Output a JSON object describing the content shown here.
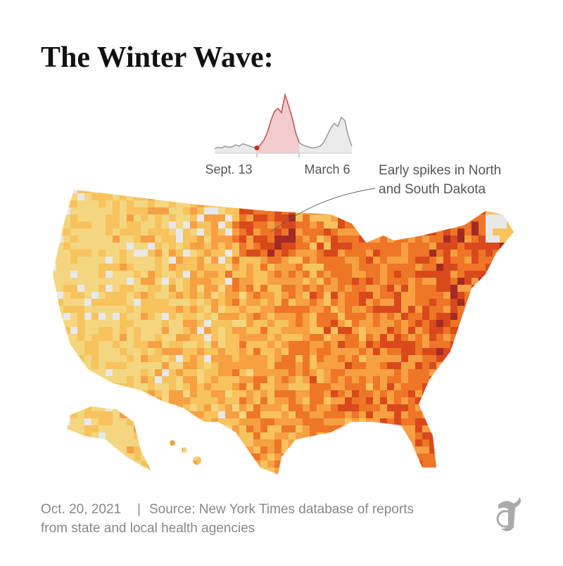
{
  "title": "The Winter Wave:",
  "sparkline": {
    "type": "area",
    "categories": [
      null,
      null,
      null,
      null,
      null,
      null,
      null,
      null,
      null,
      null,
      null,
      null,
      "Sept. 13",
      null,
      null,
      null,
      null,
      null,
      null,
      null,
      null,
      null,
      null,
      null,
      "March 6",
      null,
      null,
      null,
      null,
      null,
      null,
      null,
      null,
      null,
      null,
      null,
      null,
      null,
      null,
      null
    ],
    "values": [
      8,
      10,
      9,
      12,
      10,
      11,
      14,
      12,
      16,
      14,
      12,
      10,
      9,
      14,
      22,
      35,
      55,
      70,
      75,
      68,
      98,
      80,
      60,
      35,
      18,
      14,
      12,
      10,
      9,
      10,
      12,
      18,
      30,
      42,
      50,
      45,
      60,
      55,
      28,
      12
    ],
    "ylim": [
      0,
      100
    ],
    "color": "#e8a3a3",
    "rest_color": "#d9d9d9"
  },
  "annotation": [
    "Early spikes in North",
    "and South Dakota"
  ],
  "footer": {
    "date": "Oct. 20, 2021",
    "separator": "|",
    "source": [
      "Source: New York Times database of reports",
      "from state and local health agencies"
    ]
  }
}
